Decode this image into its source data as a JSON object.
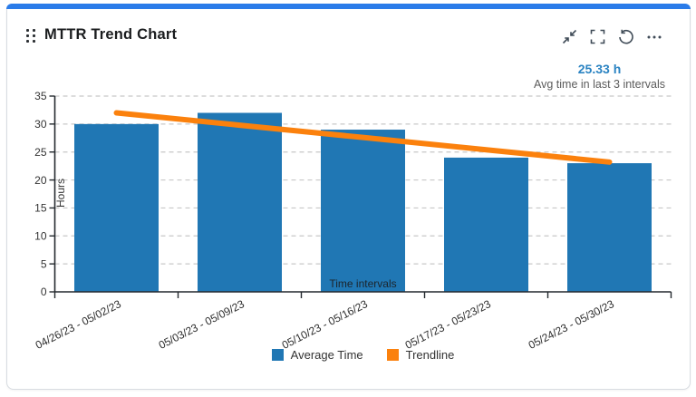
{
  "widget": {
    "title": "MTTR Trend Chart",
    "toolbar": {
      "icons": [
        "collapse-icon",
        "fullscreen-icon",
        "refresh-icon",
        "more-options-icon"
      ]
    },
    "kpi": {
      "value": "25.33 h",
      "caption": "Avg time in last 3 intervals"
    }
  },
  "colors": {
    "accent": "#2b7ce9",
    "bar": "#2077b4",
    "trend": "#fb810d",
    "kpi_text": "#2a83c2",
    "grid": "#c8c8c8",
    "axis": "#24292e",
    "tick_text": "#333333",
    "caption_text": "#5b5b5b"
  },
  "chart_data": {
    "type": "bar",
    "title": "MTTR Trend Chart",
    "categories": [
      "04/26/23 - 05/02/23",
      "05/03/23 - 05/09/23",
      "05/10/23 - 05/16/23",
      "05/17/23 - 05/23/23",
      "05/24/23 - 05/30/23"
    ],
    "series": [
      {
        "name": "Average Time",
        "type": "bar",
        "color": "#2077b4",
        "values": [
          30,
          32,
          29,
          24,
          23
        ]
      },
      {
        "name": "Trendline",
        "type": "line",
        "color": "#fb810d",
        "values": [
          32.0,
          29.8,
          27.6,
          25.4,
          23.2
        ]
      }
    ],
    "xlabel": "Time intervals",
    "ylabel": "Hours",
    "ylim": [
      0,
      35
    ],
    "ytick_step": 5,
    "grid": true,
    "legend_position": "bottom"
  }
}
